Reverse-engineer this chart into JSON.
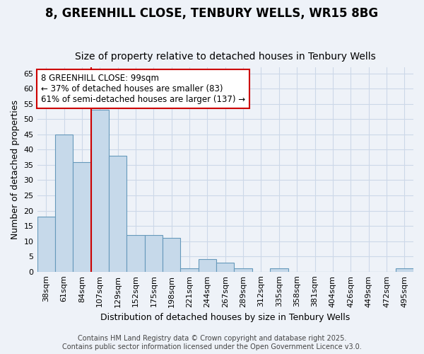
{
  "title_line1": "8, GREENHILL CLOSE, TENBURY WELLS, WR15 8BG",
  "title_line2": "Size of property relative to detached houses in Tenbury Wells",
  "xlabel": "Distribution of detached houses by size in Tenbury Wells",
  "ylabel": "Number of detached properties",
  "all_categories": [
    "38sqm",
    "61sqm",
    "84sqm",
    "107sqm",
    "129sqm",
    "152sqm",
    "175sqm",
    "198sqm",
    "221sqm",
    "244sqm",
    "267sqm",
    "289sqm",
    "312sqm",
    "335sqm",
    "358sqm",
    "381sqm",
    "404sqm",
    "426sqm",
    "449sqm",
    "472sqm",
    "495sqm"
  ],
  "all_bar_values": [
    18,
    45,
    36,
    53,
    38,
    12,
    12,
    11,
    1,
    4,
    3,
    1,
    0,
    1,
    0,
    0,
    0,
    0,
    0,
    0,
    1
  ],
  "bar_color": "#c6d9ea",
  "bar_edge_color": "#6699bb",
  "grid_color": "#ccd8e8",
  "background_color": "#eef2f8",
  "vline_x": 2.5,
  "vline_color": "#cc0000",
  "annotation_text": "8 GREENHILL CLOSE: 99sqm\n← 37% of detached houses are smaller (83)\n61% of semi-detached houses are larger (137) →",
  "annotation_box_color": "#cc0000",
  "ylim": [
    0,
    67
  ],
  "yticks": [
    0,
    5,
    10,
    15,
    20,
    25,
    30,
    35,
    40,
    45,
    50,
    55,
    60,
    65
  ],
  "footer_text": "Contains HM Land Registry data © Crown copyright and database right 2025.\nContains public sector information licensed under the Open Government Licence v3.0.",
  "title_fontsize": 12,
  "subtitle_fontsize": 10,
  "axis_label_fontsize": 9,
  "tick_fontsize": 8,
  "ann_fontsize": 8.5,
  "footer_fontsize": 7
}
